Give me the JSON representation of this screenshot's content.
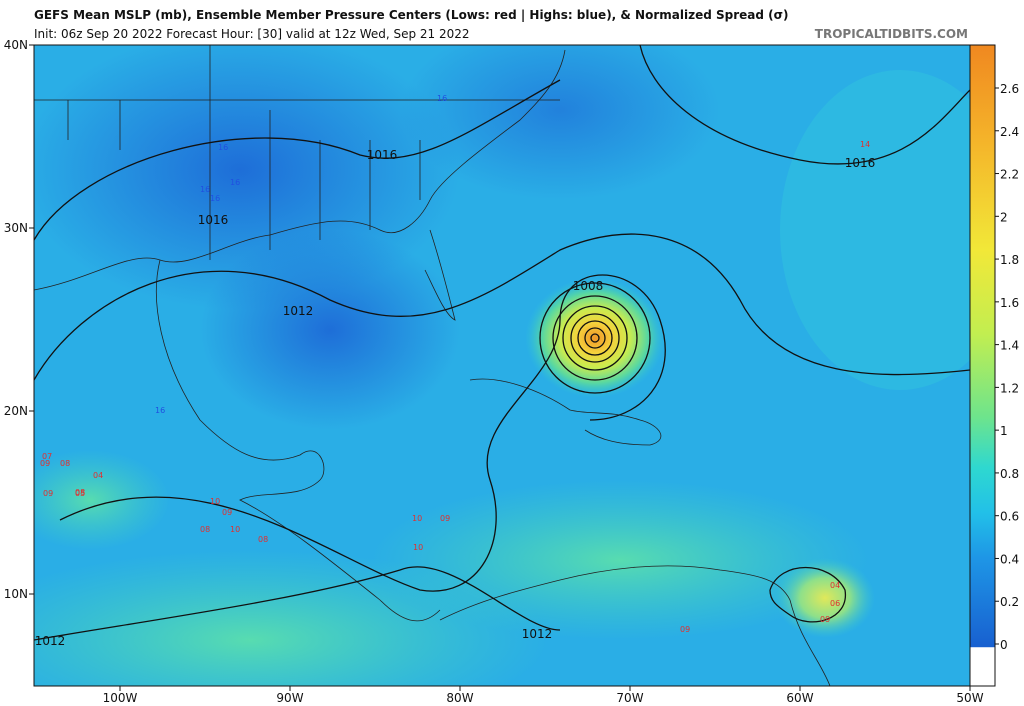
{
  "header": {
    "title": "GEFS Mean MSLP (mb), Ensemble Member Pressure Centers (Lows: red | Highs: blue), & Normalized Spread (σ)",
    "subtitle": "Init: 06z Sep 20 2022   Forecast Hour: [30]   valid at 12z Wed, Sep 21 2022",
    "site": "TROPICALTIDBITS.COM"
  },
  "map": {
    "lat_labels": [
      "40N",
      "30N",
      "20N",
      "10N"
    ],
    "lon_labels": [
      "100W",
      "90W",
      "80W",
      "70W",
      "60W",
      "50W"
    ],
    "isobar_labels": [
      "1016",
      "1016",
      "1016",
      "1012",
      "1008",
      "1012",
      "1012"
    ],
    "center_labels": [
      {
        "text": "16",
        "color": "#2050e0"
      },
      {
        "text": "16",
        "color": "#2050e0"
      },
      {
        "text": "16",
        "color": "#2050e0"
      },
      {
        "text": "16",
        "color": "#2050e0"
      },
      {
        "text": "16",
        "color": "#2050e0"
      },
      {
        "text": "16",
        "color": "#2050e0"
      },
      {
        "text": "09",
        "color": "#e03030"
      },
      {
        "text": "08",
        "color": "#e03030"
      },
      {
        "text": "07",
        "color": "#e03030"
      },
      {
        "text": "04",
        "color": "#e03030"
      },
      {
        "text": "09",
        "color": "#e03030"
      },
      {
        "text": "08",
        "color": "#e03030"
      },
      {
        "text": "10",
        "color": "#e03030"
      },
      {
        "text": "09",
        "color": "#e03030"
      },
      {
        "text": "08",
        "color": "#e03030"
      },
      {
        "text": "10",
        "color": "#e03030"
      },
      {
        "text": "08",
        "color": "#e03030"
      },
      {
        "text": "10",
        "color": "#e03030"
      },
      {
        "text": "09",
        "color": "#e03030"
      },
      {
        "text": "10",
        "color": "#e03030"
      },
      {
        "text": "05",
        "color": "#e03030"
      },
      {
        "text": "04",
        "color": "#e03030"
      },
      {
        "text": "06",
        "color": "#e03030"
      },
      {
        "text": "09",
        "color": "#e03030"
      },
      {
        "text": "14",
        "color": "#e03030"
      },
      {
        "text": "09",
        "color": "#e03030"
      }
    ]
  },
  "colorbar": {
    "ticks": [
      0,
      0.2,
      0.4,
      0.6,
      0.8,
      1,
      1.2,
      1.4,
      1.6,
      1.8,
      2,
      2.2,
      2.4,
      2.6
    ]
  }
}
